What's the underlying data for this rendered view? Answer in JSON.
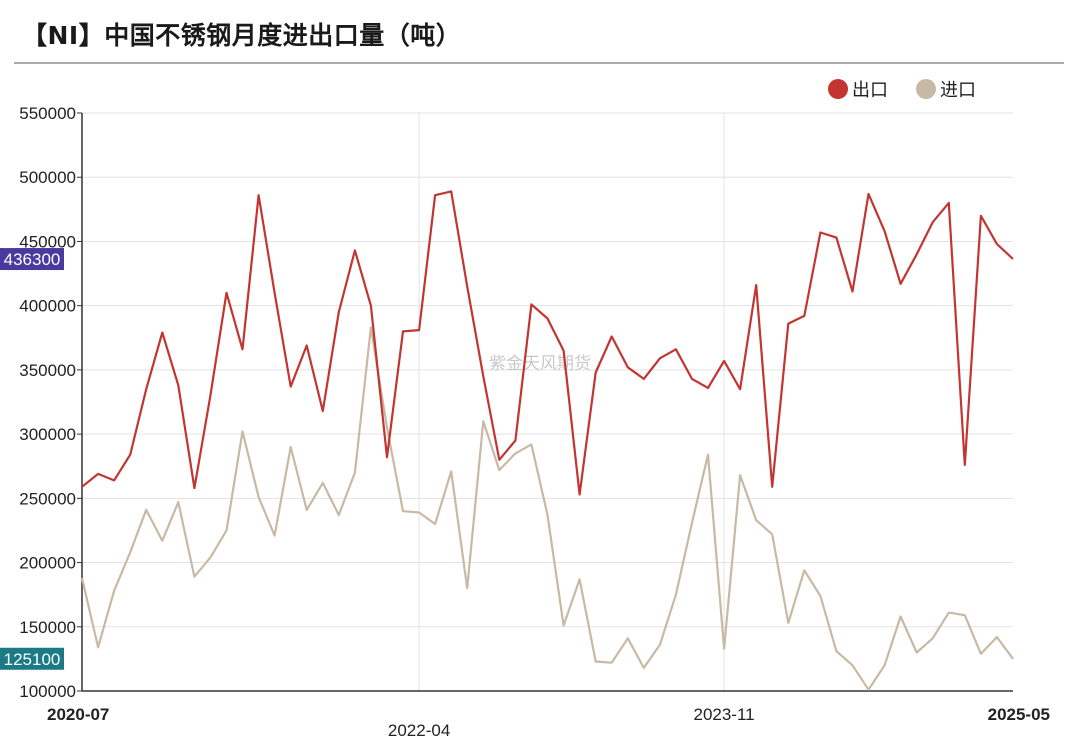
{
  "page": {
    "title": "【NI】中国不锈钢月度进出口量（吨）",
    "watermark": "紫金天风期货"
  },
  "legend": [
    {
      "name": "出口",
      "color": "#c23531"
    },
    {
      "name": "进口",
      "color": "#c8b9a5"
    }
  ],
  "chart_data": {
    "type": "line",
    "title": "【NI】中国不锈钢月度进出口量（吨）",
    "x_start": "2020-07",
    "x_end": "2025-05",
    "x_tick_labels": [
      {
        "label": "2020-07",
        "bold": true
      },
      {
        "label": "2022-04",
        "bold": false
      },
      {
        "label": "2023-11",
        "bold": false
      },
      {
        "label": "2025-05",
        "bold": true
      }
    ],
    "ylim": [
      100000,
      550000
    ],
    "y_ticks": [
      100000,
      150000,
      200000,
      250000,
      300000,
      350000,
      400000,
      450000,
      500000,
      550000
    ],
    "last_value_labels": [
      {
        "series": "出口",
        "value": "436300",
        "bg": "#4a3aa0"
      },
      {
        "series": "进口",
        "value": "125100",
        "bg": "#1a7a85"
      }
    ],
    "series": [
      {
        "name": "出口",
        "color": "#c23531",
        "values": [
          259000,
          269000,
          264000,
          284000,
          335000,
          379000,
          338000,
          258000,
          330000,
          410000,
          366000,
          486000,
          410000,
          337000,
          369000,
          318000,
          395000,
          443000,
          400000,
          282000,
          380000,
          381000,
          486000,
          489000,
          415000,
          345000,
          280000,
          295000,
          401000,
          390000,
          365000,
          253000,
          348000,
          376000,
          352000,
          343000,
          359000,
          366000,
          343000,
          336000,
          357000,
          335000,
          416000,
          259000,
          386000,
          392000,
          457000,
          453000,
          411000,
          487000,
          458000,
          417000,
          440000,
          465000,
          480000,
          276000,
          470000,
          448000,
          436300
        ]
      },
      {
        "name": "进口",
        "color": "#c8b9a5",
        "values": [
          188000,
          134000,
          178000,
          208000,
          241000,
          217000,
          247000,
          189000,
          204000,
          225000,
          302000,
          251000,
          221000,
          290000,
          241000,
          262000,
          237000,
          270000,
          383000,
          305000,
          240000,
          239000,
          230000,
          271000,
          180000,
          310000,
          272000,
          285000,
          292000,
          237000,
          151000,
          187000,
          123000,
          122000,
          141000,
          118000,
          136000,
          175000,
          231000,
          284000,
          133000,
          268000,
          233000,
          222000,
          153000,
          194000,
          174000,
          131000,
          120000,
          101000,
          120000,
          158000,
          130000,
          141000,
          161000,
          159000,
          129000,
          142000,
          125100
        ]
      }
    ]
  }
}
